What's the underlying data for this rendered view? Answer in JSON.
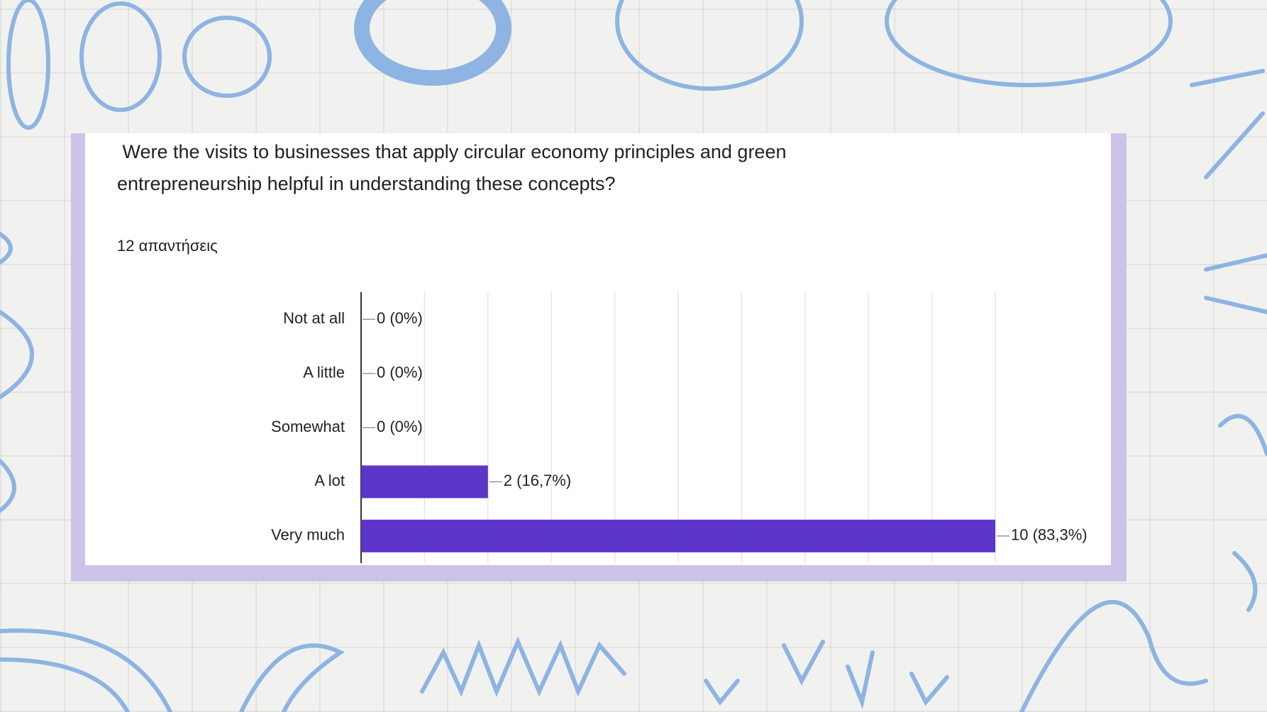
{
  "chart_data": {
    "type": "bar",
    "orientation": "horizontal",
    "title": " Were the visits to businesses that apply circular economy principles and green entrepreneurship helpful in understanding these concepts?",
    "subtitle": "12 απαντήσεις",
    "categories": [
      "Not at all",
      "A little",
      "Somewhat",
      "A lot",
      "Very much"
    ],
    "values": [
      0,
      0,
      0,
      2,
      10
    ],
    "value_labels": [
      "0 (0%)",
      "0 (0%)",
      "0 (0%)",
      "2 (16,7%)",
      "10 (83,3%)"
    ],
    "color": "#5c35c9",
    "xlim": [
      0,
      10
    ],
    "xticks": [
      0,
      1,
      2,
      3,
      4,
      5,
      6,
      7,
      8,
      9,
      10
    ],
    "grid": true
  }
}
